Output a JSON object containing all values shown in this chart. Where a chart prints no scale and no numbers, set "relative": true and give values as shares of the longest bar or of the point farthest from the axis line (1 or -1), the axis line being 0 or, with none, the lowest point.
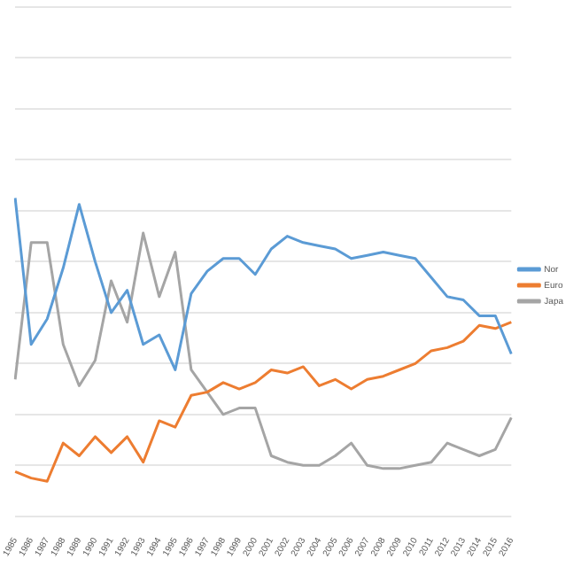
{
  "chart_data": {
    "type": "line",
    "relative": true,
    "grid": "y",
    "legend": "right",
    "marker": "none",
    "categories": [
      "1985",
      "1986",
      "1987",
      "1988",
      "1989",
      "1990",
      "1991",
      "1992",
      "1993",
      "1994",
      "1995",
      "1996",
      "1997",
      "1998",
      "1999",
      "2000",
      "2001",
      "2002",
      "2003",
      "2004",
      "2005",
      "2006",
      "2007",
      "2008",
      "2009",
      "2010",
      "2011",
      "2012",
      "2013",
      "2014",
      "2015",
      "2016"
    ],
    "series": [
      {
        "name": "Nor",
        "color": "#5b9bd5",
        "values": [
          1,
          0.54,
          0.62,
          0.78,
          0.98,
          0.8,
          0.64,
          0.71,
          0.54,
          0.57,
          0.46,
          0.7,
          0.77,
          0.81,
          0.81,
          0.76,
          0.84,
          0.88,
          0.86,
          0.85,
          0.84,
          0.81,
          0.82,
          0.83,
          0.82,
          0.81,
          0.75,
          0.69,
          0.68,
          0.63,
          0.63,
          0.51
        ]
      },
      {
        "name": "Euro",
        "color": "#ed7d31",
        "values": [
          0.14,
          0.12,
          0.11,
          0.23,
          0.19,
          0.25,
          0.2,
          0.25,
          0.17,
          0.3,
          0.28,
          0.38,
          0.39,
          0.42,
          0.4,
          0.42,
          0.46,
          0.45,
          0.47,
          0.41,
          0.43,
          0.4,
          0.43,
          0.44,
          0.46,
          0.48,
          0.52,
          0.53,
          0.55,
          0.6,
          0.59,
          0.61
        ]
      },
      {
        "name": "Japa",
        "color": "#a5a5a5",
        "values": [
          0.43,
          0.86,
          0.86,
          0.54,
          0.41,
          0.49,
          0.74,
          0.61,
          0.89,
          0.69,
          0.83,
          0.46,
          0.39,
          0.32,
          0.34,
          0.34,
          0.19,
          0.17,
          0.16,
          0.16,
          0.19,
          0.23,
          0.16,
          0.15,
          0.15,
          0.16,
          0.17,
          0.23,
          0.21,
          0.19,
          0.21,
          0.31
        ]
      }
    ]
  }
}
